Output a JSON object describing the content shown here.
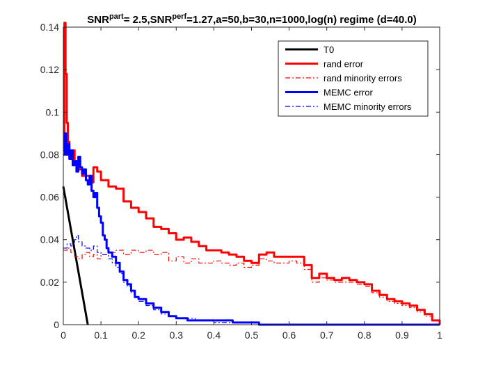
{
  "chart_data": {
    "type": "line",
    "title": {
      "p1": "SNR",
      "sup1": "part",
      "p2": "= 2.5,SNR",
      "sup2": "perf",
      "p3": "=1.27,a=50,b=30,n=1000,log(n) regime (d=40.0)"
    },
    "xlabel": "",
    "ylabel": "",
    "xlim": [
      0,
      1
    ],
    "ylim": [
      0,
      0.14
    ],
    "xticks": [
      0,
      0.1,
      0.2,
      0.3,
      0.4,
      0.5,
      0.6,
      0.7,
      0.8,
      0.9,
      1
    ],
    "xtick_labels": [
      "0",
      "0.1",
      "0.2",
      "0.3",
      "0.4",
      "0.5",
      "0.6",
      "0.7",
      "0.8",
      "0.9",
      "1"
    ],
    "yticks": [
      0,
      0.02,
      0.04,
      0.06,
      0.08,
      0.1,
      0.12,
      0.14
    ],
    "ytick_labels": [
      "0",
      "0.02",
      "0.04",
      "0.06",
      "0.08",
      "0.1",
      "0.12",
      "0.14"
    ],
    "legend_position": "top-right",
    "series": [
      {
        "name": "T0",
        "color": "#000000",
        "style": "solid",
        "width": 3,
        "points": [
          [
            0,
            0.065
          ],
          [
            0.065,
            0
          ]
        ]
      },
      {
        "name": "rand error",
        "color": "#ff0000",
        "style": "solid",
        "width": 3,
        "points": [
          [
            0,
            0.082
          ],
          [
            0.003,
            0.142
          ],
          [
            0.006,
            0.118
          ],
          [
            0.009,
            0.095
          ],
          [
            0.012,
            0.086
          ],
          [
            0.016,
            0.08
          ],
          [
            0.02,
            0.078
          ],
          [
            0.025,
            0.082
          ],
          [
            0.03,
            0.077
          ],
          [
            0.04,
            0.073
          ],
          [
            0.05,
            0.07
          ],
          [
            0.06,
            0.07
          ],
          [
            0.07,
            0.067
          ],
          [
            0.08,
            0.074
          ],
          [
            0.09,
            0.072
          ],
          [
            0.1,
            0.068
          ],
          [
            0.12,
            0.065
          ],
          [
            0.14,
            0.064
          ],
          [
            0.16,
            0.058
          ],
          [
            0.18,
            0.055
          ],
          [
            0.2,
            0.053
          ],
          [
            0.22,
            0.05
          ],
          [
            0.24,
            0.046
          ],
          [
            0.26,
            0.045
          ],
          [
            0.28,
            0.043
          ],
          [
            0.3,
            0.04
          ],
          [
            0.32,
            0.041
          ],
          [
            0.34,
            0.039
          ],
          [
            0.36,
            0.037
          ],
          [
            0.38,
            0.035
          ],
          [
            0.4,
            0.035
          ],
          [
            0.42,
            0.034
          ],
          [
            0.44,
            0.033
          ],
          [
            0.46,
            0.032
          ],
          [
            0.48,
            0.03
          ],
          [
            0.5,
            0.029
          ],
          [
            0.52,
            0.033
          ],
          [
            0.54,
            0.034
          ],
          [
            0.56,
            0.032
          ],
          [
            0.58,
            0.032
          ],
          [
            0.6,
            0.032
          ],
          [
            0.62,
            0.032
          ],
          [
            0.64,
            0.028
          ],
          [
            0.66,
            0.022
          ],
          [
            0.68,
            0.024
          ],
          [
            0.7,
            0.022
          ],
          [
            0.72,
            0.021
          ],
          [
            0.74,
            0.022
          ],
          [
            0.76,
            0.021
          ],
          [
            0.78,
            0.02
          ],
          [
            0.8,
            0.019
          ],
          [
            0.82,
            0.016
          ],
          [
            0.84,
            0.014
          ],
          [
            0.86,
            0.012
          ],
          [
            0.88,
            0.011
          ],
          [
            0.9,
            0.01
          ],
          [
            0.92,
            0.009
          ],
          [
            0.94,
            0.007
          ],
          [
            0.96,
            0.005
          ],
          [
            0.98,
            0.002
          ],
          [
            1.0,
            0.0
          ]
        ]
      },
      {
        "name": "rand minority errors",
        "color": "#ff0000",
        "style": "dashdot",
        "width": 1.2,
        "points": [
          [
            0,
            0.035
          ],
          [
            0.01,
            0.036
          ],
          [
            0.02,
            0.034
          ],
          [
            0.03,
            0.032
          ],
          [
            0.04,
            0.031
          ],
          [
            0.05,
            0.033
          ],
          [
            0.06,
            0.034
          ],
          [
            0.07,
            0.032
          ],
          [
            0.08,
            0.033
          ],
          [
            0.09,
            0.031
          ],
          [
            0.1,
            0.033
          ],
          [
            0.12,
            0.034
          ],
          [
            0.14,
            0.035
          ],
          [
            0.16,
            0.033
          ],
          [
            0.18,
            0.035
          ],
          [
            0.2,
            0.034
          ],
          [
            0.22,
            0.035
          ],
          [
            0.24,
            0.033
          ],
          [
            0.26,
            0.034
          ],
          [
            0.28,
            0.03
          ],
          [
            0.3,
            0.032
          ],
          [
            0.32,
            0.029
          ],
          [
            0.34,
            0.031
          ],
          [
            0.36,
            0.029
          ],
          [
            0.38,
            0.029
          ],
          [
            0.4,
            0.03
          ],
          [
            0.42,
            0.029
          ],
          [
            0.44,
            0.028
          ],
          [
            0.46,
            0.029
          ],
          [
            0.48,
            0.027
          ],
          [
            0.5,
            0.028
          ],
          [
            0.52,
            0.031
          ],
          [
            0.54,
            0.03
          ],
          [
            0.56,
            0.029
          ],
          [
            0.58,
            0.029
          ],
          [
            0.6,
            0.03
          ],
          [
            0.62,
            0.029
          ],
          [
            0.64,
            0.026
          ],
          [
            0.66,
            0.02
          ],
          [
            0.68,
            0.022
          ],
          [
            0.7,
            0.021
          ],
          [
            0.72,
            0.02
          ],
          [
            0.74,
            0.02
          ],
          [
            0.76,
            0.02
          ],
          [
            0.78,
            0.019
          ],
          [
            0.8,
            0.018
          ],
          [
            0.82,
            0.015
          ],
          [
            0.84,
            0.013
          ],
          [
            0.86,
            0.011
          ],
          [
            0.88,
            0.01
          ],
          [
            0.9,
            0.009
          ],
          [
            0.92,
            0.008
          ],
          [
            0.94,
            0.006
          ],
          [
            0.96,
            0.004
          ],
          [
            0.98,
            0.002
          ],
          [
            1.0,
            0.0
          ]
        ]
      },
      {
        "name": "MEMC error",
        "color": "#0000ff",
        "style": "solid",
        "width": 3,
        "points": [
          [
            0,
            0.08
          ],
          [
            0.004,
            0.09
          ],
          [
            0.008,
            0.08
          ],
          [
            0.012,
            0.085
          ],
          [
            0.016,
            0.078
          ],
          [
            0.02,
            0.082
          ],
          [
            0.025,
            0.075
          ],
          [
            0.03,
            0.077
          ],
          [
            0.035,
            0.072
          ],
          [
            0.04,
            0.079
          ],
          [
            0.045,
            0.074
          ],
          [
            0.05,
            0.071
          ],
          [
            0.055,
            0.073
          ],
          [
            0.06,
            0.068
          ],
          [
            0.065,
            0.066
          ],
          [
            0.07,
            0.07
          ],
          [
            0.075,
            0.063
          ],
          [
            0.08,
            0.06
          ],
          [
            0.085,
            0.062
          ],
          [
            0.09,
            0.055
          ],
          [
            0.095,
            0.051
          ],
          [
            0.1,
            0.048
          ],
          [
            0.105,
            0.042
          ],
          [
            0.11,
            0.04
          ],
          [
            0.115,
            0.036
          ],
          [
            0.12,
            0.034
          ],
          [
            0.13,
            0.032
          ],
          [
            0.14,
            0.029
          ],
          [
            0.15,
            0.025
          ],
          [
            0.16,
            0.021
          ],
          [
            0.17,
            0.019
          ],
          [
            0.18,
            0.016
          ],
          [
            0.19,
            0.013
          ],
          [
            0.2,
            0.012
          ],
          [
            0.22,
            0.01
          ],
          [
            0.24,
            0.008
          ],
          [
            0.26,
            0.006
          ],
          [
            0.28,
            0.004
          ],
          [
            0.3,
            0.003
          ],
          [
            0.33,
            0.002
          ],
          [
            0.37,
            0.002
          ],
          [
            0.4,
            0.002
          ],
          [
            0.45,
            0.001
          ],
          [
            0.5,
            0.001
          ],
          [
            0.52,
            0.0
          ],
          [
            1.0,
            0.0
          ]
        ]
      },
      {
        "name": "MEMC minority errors",
        "color": "#0000ff",
        "style": "dashdot",
        "width": 1.2,
        "points": [
          [
            0,
            0.036
          ],
          [
            0.01,
            0.038
          ],
          [
            0.02,
            0.037
          ],
          [
            0.03,
            0.04
          ],
          [
            0.035,
            0.042
          ],
          [
            0.04,
            0.039
          ],
          [
            0.05,
            0.037
          ],
          [
            0.06,
            0.036
          ],
          [
            0.07,
            0.035
          ],
          [
            0.08,
            0.037
          ],
          [
            0.09,
            0.034
          ],
          [
            0.1,
            0.033
          ],
          [
            0.11,
            0.033
          ],
          [
            0.12,
            0.031
          ],
          [
            0.13,
            0.029
          ],
          [
            0.14,
            0.027
          ],
          [
            0.15,
            0.024
          ],
          [
            0.16,
            0.02
          ],
          [
            0.17,
            0.018
          ],
          [
            0.18,
            0.015
          ],
          [
            0.19,
            0.013
          ],
          [
            0.2,
            0.011
          ],
          [
            0.22,
            0.009
          ],
          [
            0.24,
            0.007
          ],
          [
            0.26,
            0.005
          ],
          [
            0.28,
            0.004
          ],
          [
            0.3,
            0.003
          ],
          [
            0.35,
            0.002
          ],
          [
            0.4,
            0.001
          ],
          [
            0.5,
            0.001
          ],
          [
            0.52,
            0.0
          ],
          [
            1.0,
            0.0
          ]
        ]
      }
    ]
  }
}
